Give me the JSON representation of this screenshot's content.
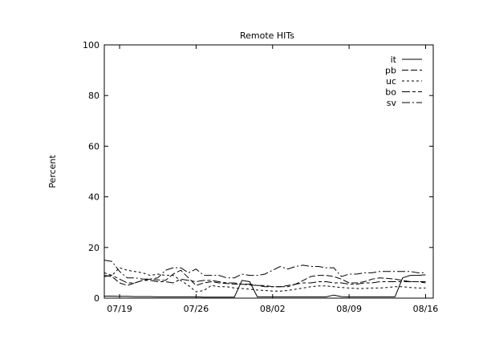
{
  "chart_data": {
    "type": "line",
    "title": "Remote HITs",
    "xlabel": "",
    "ylabel": "Percent",
    "ylim": [
      0,
      100
    ],
    "xlim": [
      0,
      43
    ],
    "yticks": [
      0,
      20,
      40,
      60,
      80,
      100
    ],
    "x_tick_labels": [
      {
        "x": 2,
        "label": "07/19"
      },
      {
        "x": 12,
        "label": "07/26"
      },
      {
        "x": 22,
        "label": "08/02"
      },
      {
        "x": 32,
        "label": "08/09"
      },
      {
        "x": 42,
        "label": "08/16"
      }
    ],
    "legend_position": "top-right",
    "grid": false,
    "series": [
      {
        "name": "it",
        "dash": "",
        "values": [
          0.8,
          0.8,
          0.7,
          0.7,
          0.6,
          0.6,
          0.6,
          0.5,
          0.5,
          0.5,
          0.5,
          0.5,
          0.5,
          0.4,
          0.4,
          0.4,
          0.4,
          0.4,
          7.0,
          6.5,
          0.5,
          0.5,
          0.5,
          0.5,
          0.5,
          0.5,
          0.5,
          0.5,
          0.5,
          0.5,
          1.2,
          0.6,
          0.5,
          0.5,
          0.5,
          0.5,
          0.5,
          0.5,
          0.5,
          8.0,
          9.0,
          9.0,
          9.2
        ]
      },
      {
        "name": "pb",
        "dash": "8,3",
        "values": [
          9.0,
          8.5,
          6.0,
          5.0,
          6.0,
          7.0,
          7.5,
          7.2,
          7.0,
          9.5,
          11.0,
          8.0,
          5.0,
          6.0,
          6.5,
          6.0,
          5.8,
          5.5,
          5.5,
          5.2,
          5.0,
          5.0,
          4.5,
          4.5,
          5.0,
          5.5,
          7.0,
          8.5,
          9.0,
          9.0,
          8.5,
          7.5,
          6.0,
          6.0,
          6.5,
          7.5,
          8.0,
          7.8,
          7.5,
          7.0,
          6.5,
          6.5,
          6.0
        ]
      },
      {
        "name": "uc",
        "dash": "3,3",
        "values": [
          10.0,
          9.0,
          12.0,
          11.0,
          10.5,
          10.0,
          9.0,
          9.5,
          9.0,
          9.0,
          7.0,
          5.0,
          2.5,
          3.0,
          5.0,
          4.5,
          4.5,
          4.0,
          3.8,
          3.5,
          3.2,
          3.0,
          2.8,
          2.8,
          3.0,
          3.5,
          4.0,
          4.5,
          4.8,
          4.8,
          4.5,
          4.2,
          4.0,
          3.8,
          3.8,
          4.0,
          4.0,
          4.2,
          4.5,
          4.5,
          4.2,
          4.0,
          4.0
        ]
      },
      {
        "name": "bo",
        "dash": "10,3,4,3",
        "values": [
          8.5,
          9.0,
          7.5,
          6.0,
          6.0,
          7.0,
          7.0,
          6.5,
          6.5,
          6.0,
          7.5,
          7.0,
          6.5,
          7.0,
          7.0,
          6.5,
          6.0,
          6.0,
          5.5,
          5.5,
          5.0,
          4.5,
          4.5,
          4.5,
          4.5,
          5.5,
          6.0,
          6.0,
          6.5,
          6.5,
          6.0,
          6.0,
          5.5,
          5.5,
          6.0,
          6.0,
          6.5,
          6.5,
          6.5,
          6.5,
          6.5,
          6.5,
          6.5
        ]
      },
      {
        "name": "sv",
        "dash": "10,3,2,3",
        "values": [
          15.0,
          14.5,
          10.5,
          8.0,
          8.0,
          7.5,
          7.5,
          8.0,
          11.0,
          12.0,
          12.0,
          10.0,
          11.5,
          9.0,
          9.0,
          9.0,
          8.0,
          8.0,
          9.5,
          9.0,
          9.0,
          9.5,
          11.0,
          12.5,
          11.5,
          12.5,
          13.0,
          12.5,
          12.5,
          12.0,
          12.0,
          8.5,
          9.5,
          9.5,
          10.0,
          10.0,
          10.5,
          10.5,
          10.5,
          10.5,
          10.5,
          10.0,
          10.0
        ]
      }
    ]
  }
}
